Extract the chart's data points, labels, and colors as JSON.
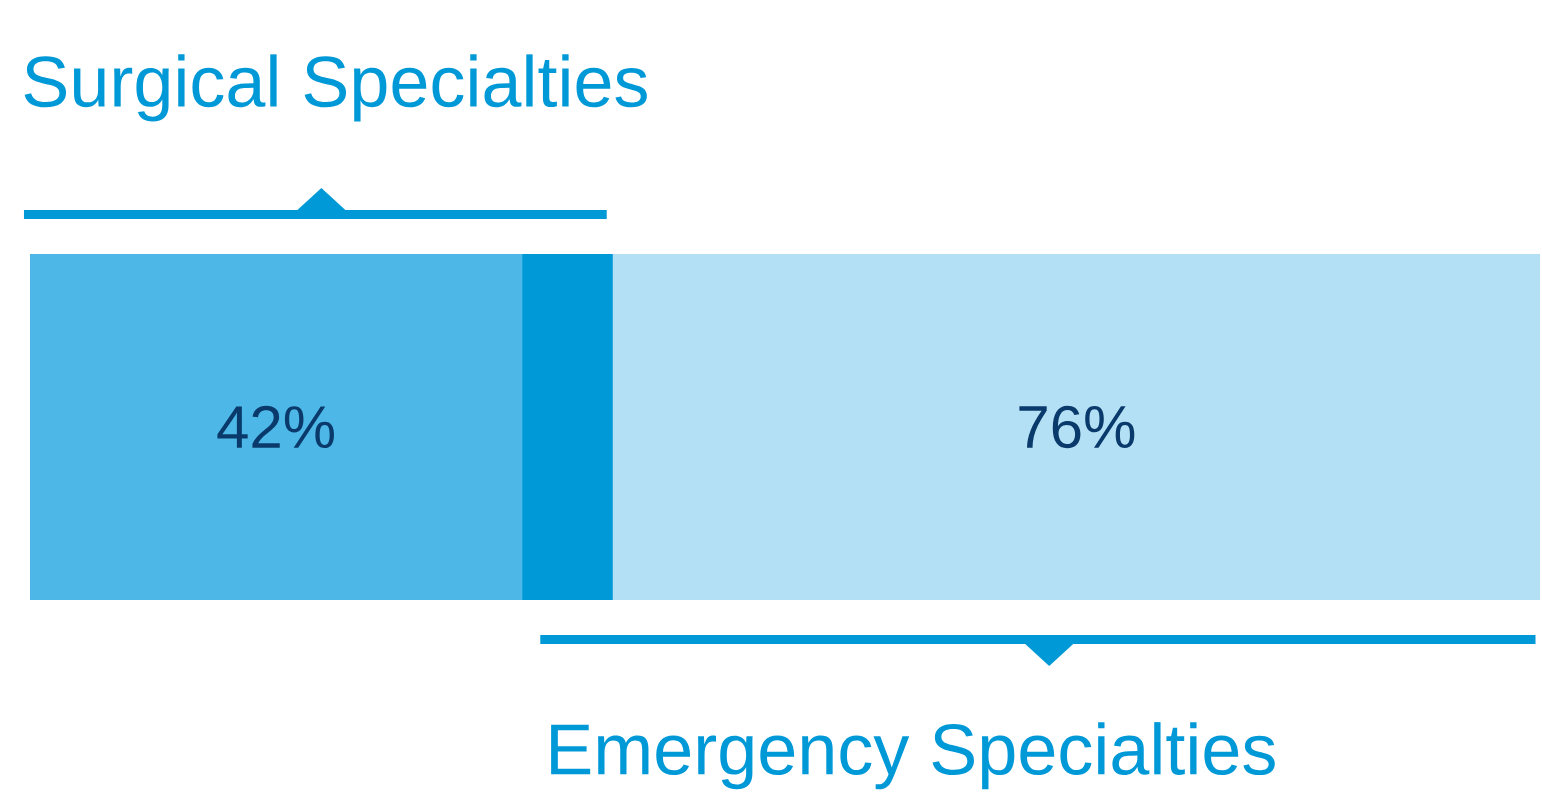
{
  "chart_data": {
    "type": "other",
    "categories": [
      "Surgical Specialties",
      "Emergency Specialties"
    ],
    "values": [
      42,
      76
    ],
    "value_labels": [
      "42%",
      "76%"
    ],
    "colors": [
      "#4db8e8",
      "#b3e0f4"
    ]
  }
}
